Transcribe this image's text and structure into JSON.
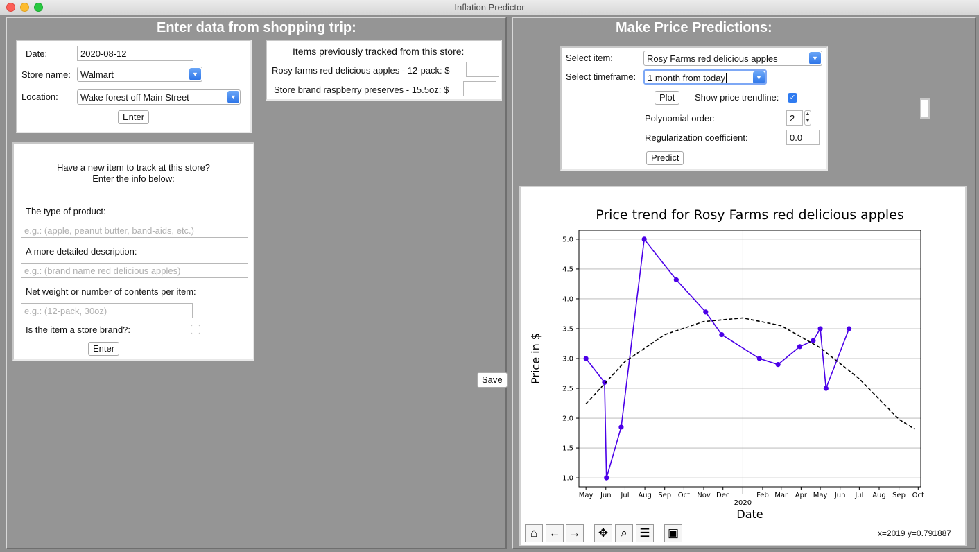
{
  "window": {
    "title": "Inflation Predictor"
  },
  "left": {
    "title": "Enter data from shopping trip:",
    "trip": {
      "date_label": "Date:",
      "date_value": "2020-08-12",
      "store_label": "Store name:",
      "store_value": "Walmart",
      "location_label": "Location:",
      "location_value": "Wake forest off Main Street",
      "enter_label": "Enter"
    },
    "tracked": {
      "title": "Items previously tracked from this store:",
      "items": [
        {
          "label": "Rosy farms red delicious apples  -  12-pack: $",
          "value": ""
        },
        {
          "label": "Store brand raspberry preserves  -  15.5oz: $",
          "value": ""
        }
      ]
    },
    "new_item": {
      "intro_line1": "Have a new item to track at this store?",
      "intro_line2": "Enter the info below:",
      "type_label": "The type of product:",
      "type_placeholder": "e.g.: (apple, peanut butter, band-aids, etc.)",
      "desc_label": "A more detailed description:",
      "desc_placeholder": "e.g.: (brand name red delicious apples)",
      "weight_label": "Net weight or number of contents per item:",
      "weight_placeholder": "e.g.: (12-pack, 30oz)",
      "store_brand_label": "Is the item a store brand?:",
      "enter_label": "Enter"
    },
    "save_label": "Save"
  },
  "right": {
    "title": "Make Price Predictions:",
    "controls": {
      "item_label": "Select item:",
      "item_value": "Rosy Farms red delicious apples",
      "timeframe_label": "Select timeframe:",
      "timeframe_value": "1 month from today",
      "plot_label": "Plot",
      "trendline_label": "Show price trendline:",
      "poly_label": "Polynomial order:",
      "poly_value": "2",
      "reg_label": "Regularization coefficient:",
      "reg_value": "0.0",
      "predict_label": "Predict"
    },
    "coords_text": "x=2019 y=0.791887"
  },
  "chart_data": {
    "type": "line",
    "title": "Price trend for Rosy Farms red delicious apples",
    "xlabel": "Date",
    "ylabel": "Price in $",
    "ylim": [
      0.85,
      5.15
    ],
    "yticks": [
      1.0,
      1.5,
      2.0,
      2.5,
      3.0,
      3.5,
      4.0,
      4.5,
      5.0
    ],
    "xtick_labels": [
      "May",
      "Jun",
      "Jul",
      "Aug",
      "Sep",
      "Oct",
      "Nov",
      "Dec",
      "Feb",
      "Mar",
      "Apr",
      "May",
      "Jun",
      "Jul",
      "Aug",
      "Sep",
      "Oct"
    ],
    "xtick_months": [
      "2019-05",
      "2019-06",
      "2019-07",
      "2019-08",
      "2019-09",
      "2019-10",
      "2019-11",
      "2019-12",
      "2020-02",
      "2020-03",
      "2020-04",
      "2020-05",
      "2020-06",
      "2020-07",
      "2020-08",
      "2020-09",
      "2020-10"
    ],
    "year_label": "2020",
    "year_month": "2020-01",
    "xlim": [
      "2019-04-20",
      "2020-10-05"
    ],
    "grid": true,
    "series": [
      {
        "style": "solid-markers",
        "color": "#4b00e8",
        "x": [
          "2019-05-01",
          "2019-05-30",
          "2019-06-02",
          "2019-06-25",
          "2019-07-31",
          "2019-09-19",
          "2019-11-04",
          "2019-11-29",
          "2020-01-27",
          "2020-02-25",
          "2020-03-30",
          "2020-04-20",
          "2020-05-01",
          "2020-05-10",
          "2020-06-15"
        ],
        "y": [
          3.0,
          2.6,
          1.0,
          1.85,
          5.0,
          4.32,
          3.78,
          3.4,
          3.0,
          2.9,
          3.2,
          3.3,
          3.5,
          2.5,
          3.5
        ]
      },
      {
        "style": "dashed",
        "color": "#000000",
        "x": [
          "2019-05-01",
          "2019-07-01",
          "2019-09-01",
          "2019-11-01",
          "2020-01-01",
          "2020-03-01",
          "2020-05-01",
          "2020-07-01",
          "2020-09-01",
          "2020-09-25"
        ],
        "y": [
          2.24,
          2.95,
          3.4,
          3.62,
          3.68,
          3.55,
          3.18,
          2.66,
          1.98,
          1.82
        ]
      }
    ]
  }
}
